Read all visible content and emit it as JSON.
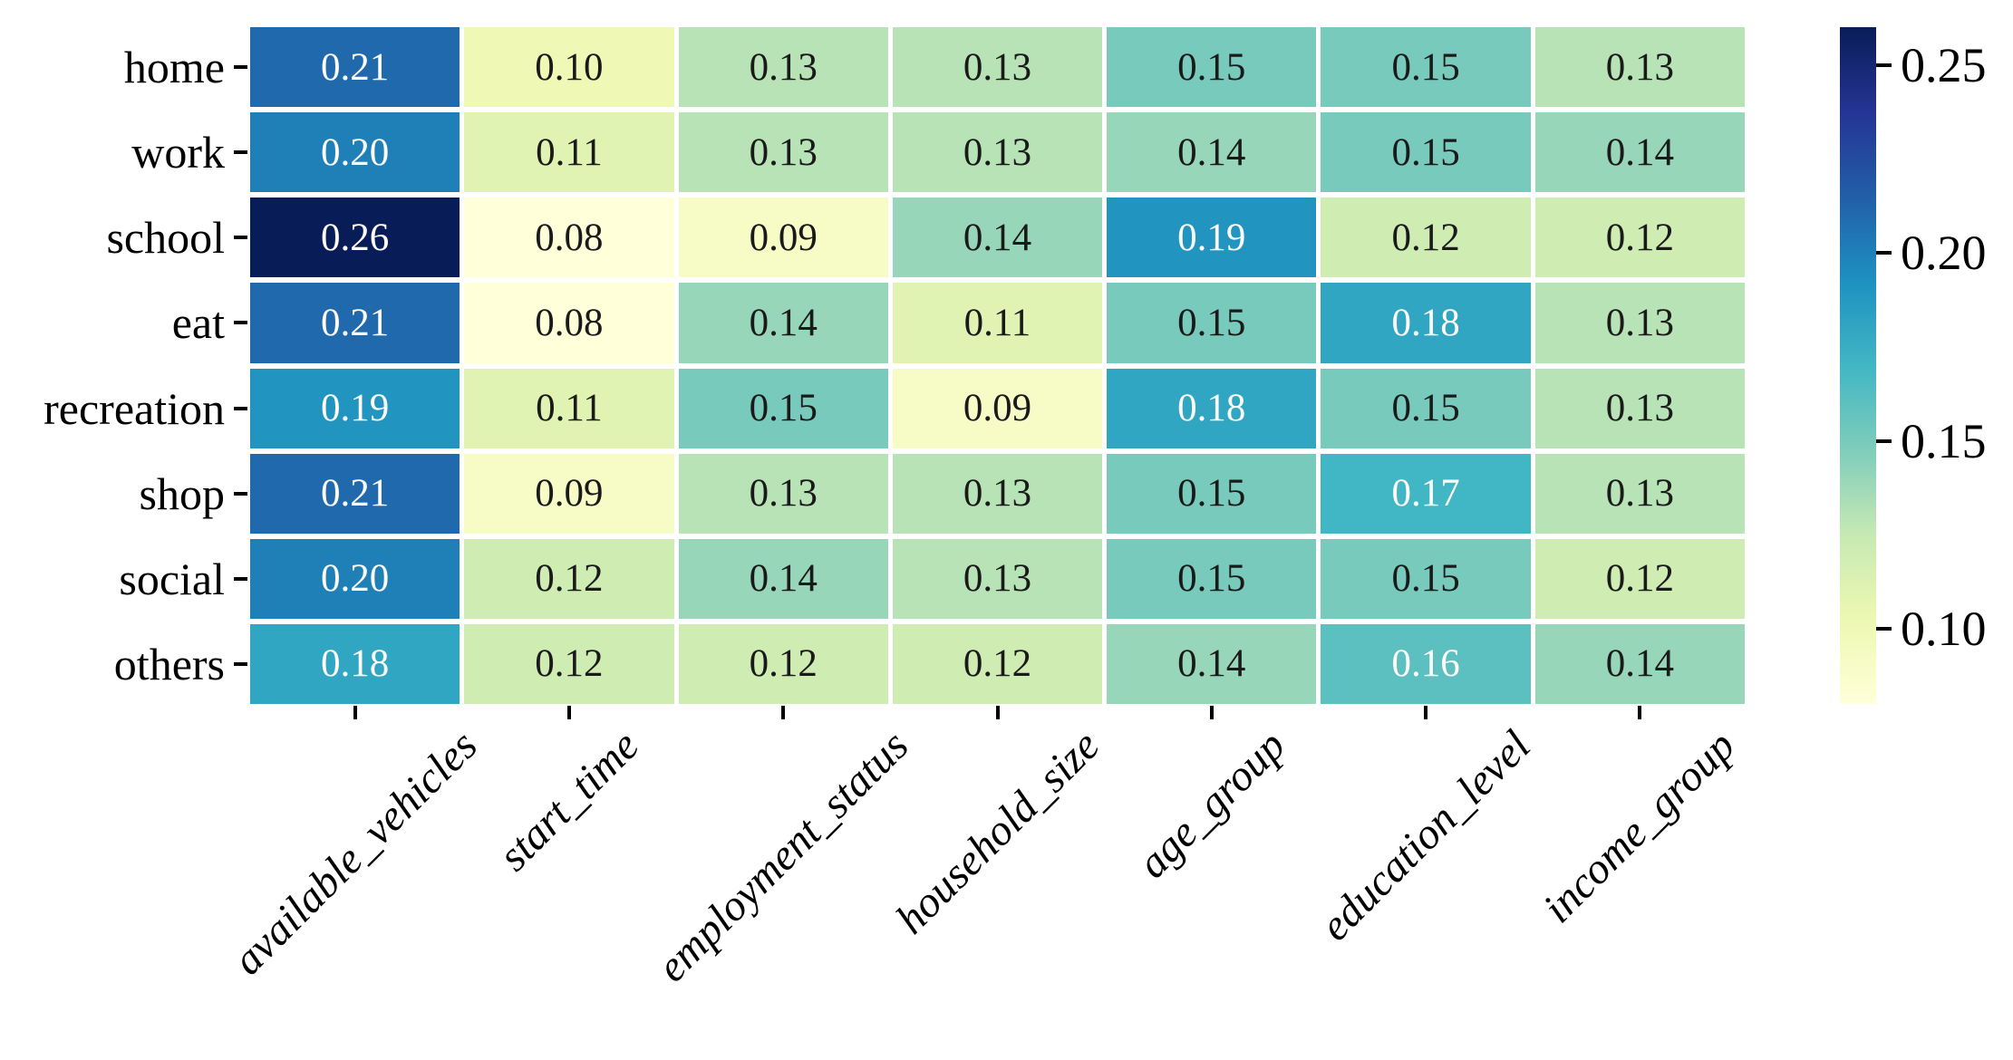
{
  "figure": {
    "background": "#ffffff",
    "text_color": "#000000"
  },
  "chart_data": {
    "type": "heatmap",
    "title": "",
    "xlabel": "",
    "ylabel": "",
    "rows": [
      "home",
      "work",
      "school",
      "eat",
      "recreation",
      "shop",
      "social",
      "others"
    ],
    "columns": [
      "available_vehicles",
      "start_time",
      "employment_status",
      "household_size",
      "age_group",
      "education_level",
      "income_group"
    ],
    "values": [
      [
        0.21,
        0.1,
        0.13,
        0.13,
        0.15,
        0.15,
        0.13
      ],
      [
        0.2,
        0.11,
        0.13,
        0.13,
        0.14,
        0.15,
        0.14
      ],
      [
        0.26,
        0.08,
        0.09,
        0.14,
        0.19,
        0.12,
        0.12
      ],
      [
        0.21,
        0.08,
        0.14,
        0.11,
        0.15,
        0.18,
        0.13
      ],
      [
        0.19,
        0.11,
        0.15,
        0.09,
        0.18,
        0.15,
        0.13
      ],
      [
        0.21,
        0.09,
        0.13,
        0.13,
        0.15,
        0.17,
        0.13
      ],
      [
        0.2,
        0.12,
        0.14,
        0.13,
        0.15,
        0.15,
        0.12
      ],
      [
        0.18,
        0.12,
        0.12,
        0.12,
        0.14,
        0.16,
        0.14
      ]
    ],
    "value_decimals": 2,
    "vmin": 0.08,
    "vmax": 0.26,
    "colormap": "YlGnBu",
    "colormap_stops": [
      "#ffffd9",
      "#edf8b1",
      "#c7e9b4",
      "#7fcdbb",
      "#41b6c4",
      "#1d91c0",
      "#225ea8",
      "#253494",
      "#081d58"
    ],
    "annotation_colors": {
      "on_dark": "#ffffff",
      "on_light": "#1a1a1a"
    },
    "grid": false,
    "legend_position": "right",
    "colorbar": {
      "ticks": [
        0.25,
        0.2,
        0.15,
        0.1
      ],
      "tick_labels": [
        "0.25",
        "0.20",
        "0.15",
        "0.10"
      ]
    }
  }
}
